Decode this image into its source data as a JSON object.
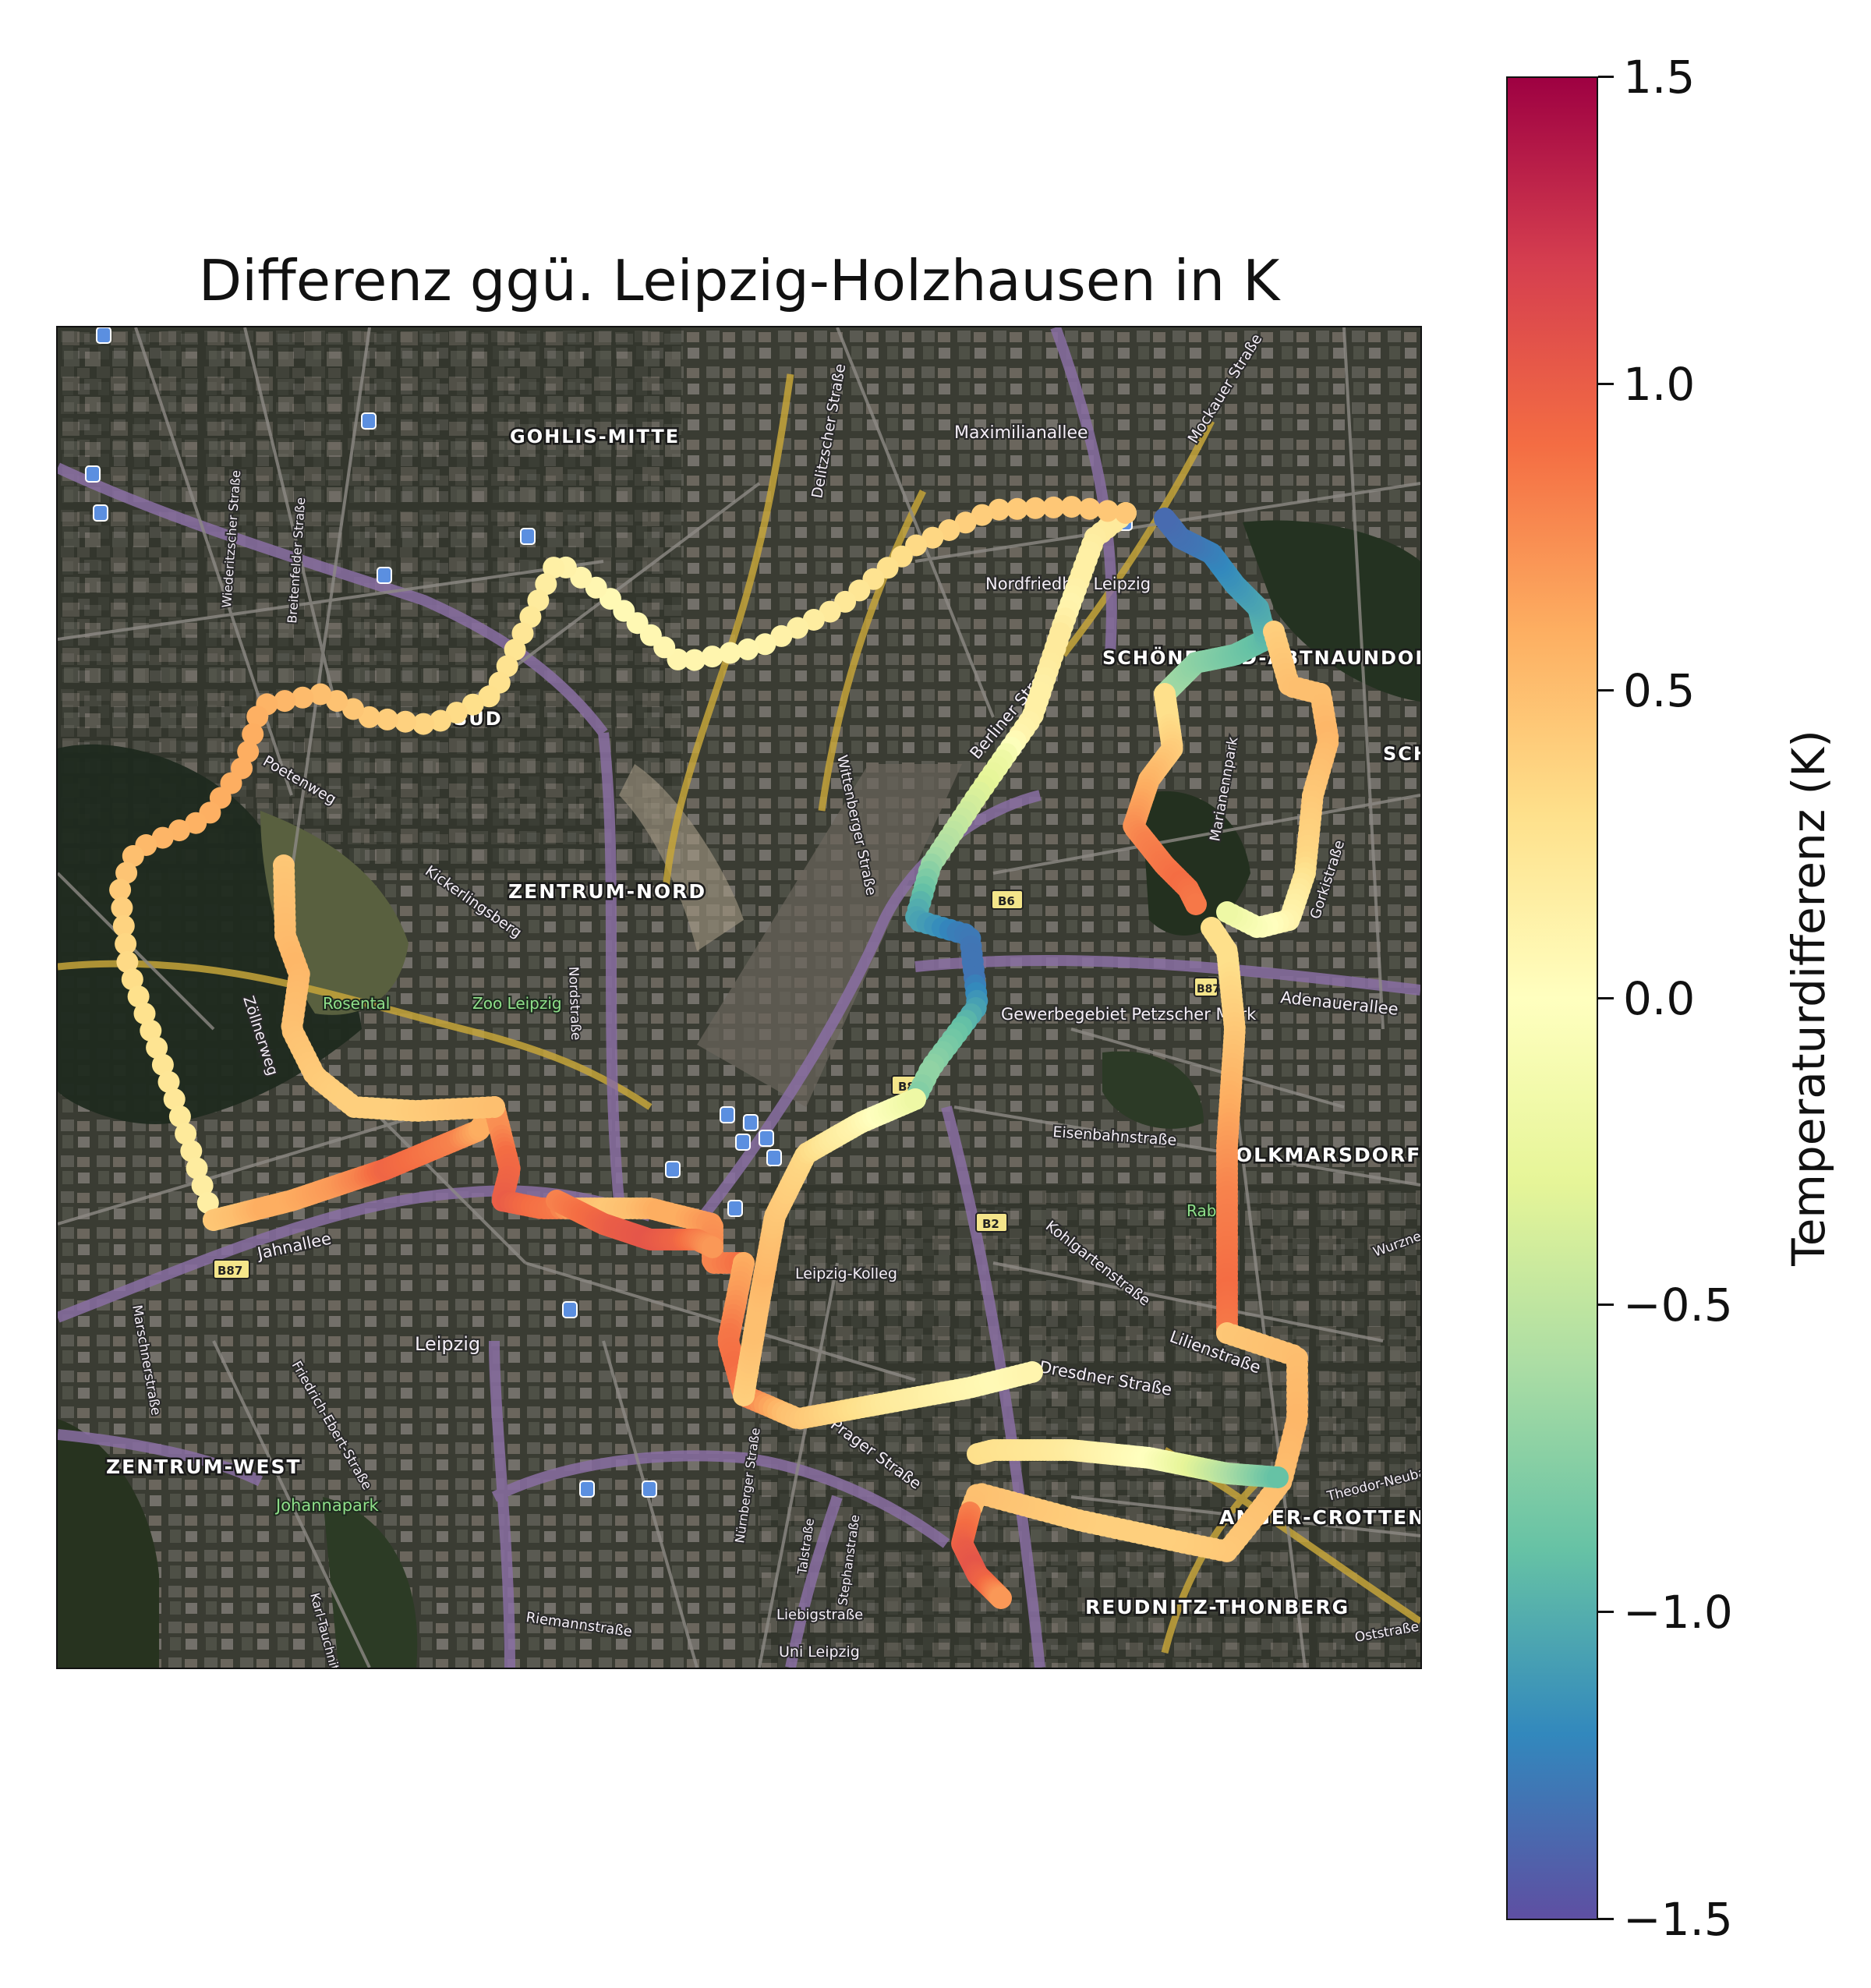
{
  "title": "Differenz ggü. Leipzig-Holzhausen in K",
  "colorbar": {
    "label": "Temperaturdifferenz (K)",
    "min": -1.5,
    "max": 1.5,
    "colormap": "Spectral_r",
    "ticks": [
      "1.5",
      "1.0",
      "0.5",
      "0.0",
      "−0.5",
      "−1.0",
      "−1.5"
    ],
    "colors": [
      "#5e4fa2",
      "#3288bd",
      "#66c2a5",
      "#abdda4",
      "#e6f598",
      "#ffffbf",
      "#fee08b",
      "#fdae61",
      "#f46d43",
      "#d53e4f",
      "#9e0142"
    ]
  },
  "map": {
    "basemap": "satellite imagery with street overlay",
    "districts": [
      "GOHLIS-MITTE",
      "ZENTRUM-NORD",
      "ZENTRUM-WEST",
      "REUDNITZ-THONBERG",
      "SCHÖNEFELD-ABTNAUNDORF",
      "VOLKMARSDORF",
      "ANGER-CROTTENDORF",
      "SÜD",
      "SCH"
    ],
    "streets": [
      "Maximilianallee",
      "Delitzscher Straße",
      "Mockauer Straße",
      "Nordfriedhof Leipzig",
      "Wiederitzscher Straße",
      "Breitenfelder Straße",
      "Poetenweg",
      "Kickerlingsberg",
      "Berliner Straße",
      "Wittenberger Straße",
      "Marianennpark",
      "Gorkistraße",
      "Adenauerallee",
      "Gewerbegebiet Petzscher Mark",
      "Zöllnerweg",
      "Rosental",
      "Zoo Leipzig",
      "Nordstraße",
      "Eisenbahnstraße",
      "Kohlgartenstraße",
      "Lilienstraße",
      "Dresdner Straße",
      "Jahnallee",
      "Leipzig",
      "Leipzig-Kolleg",
      "Marschnerstraße",
      "Friedrich-Ebert-Straße",
      "Johannapark",
      "Karl-Tauchnitz-Straße",
      "Nürnberger Straße",
      "Talstraße",
      "Stephanstraße",
      "Liebigstraße",
      "Prager Straße",
      "Riemannstraße",
      "Uni Leipzig",
      "Theodor-Neubauer-Straße",
      "Oststraße",
      "Wurzner Straße",
      "Rabet"
    ],
    "road_shields": [
      "B6",
      "B8",
      "B2",
      "B87",
      "B87",
      "B8"
    ],
    "route_segments": [
      {
        "values": [
          0.2,
          0.2,
          0.15,
          0.15,
          0.1,
          0.2,
          0.2,
          0.15,
          0.15,
          0.1,
          -0.2,
          -0.3,
          -0.4,
          -0.5,
          -0.6,
          -0.8,
          -1.0,
          -1.1,
          -1.25,
          -1.3,
          -1.3,
          -1.1,
          -0.9,
          -0.8,
          -0.7,
          -0.8
        ]
      },
      {
        "values": [
          0.45,
          0.45,
          0.4,
          0.3,
          0.2,
          0.1,
          0.1,
          0.05,
          0.15,
          0.25,
          0.3,
          0.4,
          0.5,
          0.6,
          0.6,
          0.55,
          0.4,
          0.3,
          0.25,
          0.2,
          0.15
        ]
      },
      {
        "values": [
          0.45,
          0.5,
          0.6,
          0.6,
          0.65,
          0.7,
          0.8,
          0.95,
          0.9,
          0.85,
          0.8,
          0.6,
          0.6
        ]
      },
      {
        "values": [
          0.7,
          0.75,
          0.9,
          0.95,
          1.0,
          0.9,
          0.85,
          0.5,
          0.45,
          0.5,
          0.6,
          0.6,
          0.7,
          0.75,
          0.8,
          0.9
        ]
      },
      {
        "values": [
          0.6,
          0.7,
          0.85,
          0.9,
          0.8,
          0.5,
          0.4,
          0.3,
          0.2,
          0.15,
          0.1,
          0.05,
          0.1
        ]
      },
      {
        "values": [
          0.4,
          0.45,
          0.5,
          0.5,
          0.55,
          0.5,
          0.45,
          0.4,
          0.35,
          0.2,
          0.1,
          -0.05,
          -0.2
        ]
      },
      {
        "values": [
          0.3,
          0.3,
          0.4,
          0.5,
          0.6,
          0.7,
          0.8,
          0.85,
          0.9,
          0.85
        ]
      },
      {
        "values": [
          0.45,
          0.5,
          0.55,
          0.5,
          0.45,
          0.4,
          0.4,
          0.45,
          0.5
        ]
      },
      {
        "values": [
          0.8,
          0.9,
          1.0,
          1.05,
          0.95,
          0.7
        ]
      },
      {
        "values": [
          0.3,
          0.25,
          0.2,
          0.1,
          0.0,
          -0.3,
          -0.6,
          -0.9
        ]
      },
      {
        "values": [
          -0.6,
          -0.7,
          -0.8,
          -0.9,
          -1.0,
          -1.1,
          -1.2,
          -1.3,
          -1.35
        ]
      }
    ]
  }
}
